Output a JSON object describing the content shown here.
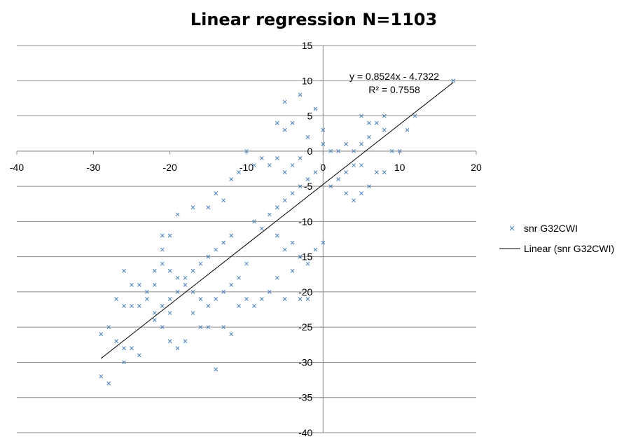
{
  "chart_data": {
    "type": "scatter",
    "title": "Linear regression N=1103",
    "xlabel": "",
    "ylabel": "",
    "xlim": [
      -40,
      20
    ],
    "ylim": [
      -40,
      15
    ],
    "x_ticks": [
      -40,
      -30,
      -20,
      -10,
      0,
      10,
      20
    ],
    "y_ticks": [
      15,
      10,
      5,
      0,
      -5,
      -10,
      -15,
      -20,
      -25,
      -30,
      -35,
      -40
    ],
    "grid": "horizontal",
    "legend_position": "right",
    "series": [
      {
        "name": "snr G32CWI",
        "marker": "x",
        "color": "#4a7ebb",
        "points": [
          [
            -29,
            -32
          ],
          [
            -28,
            -33
          ],
          [
            -26,
            -30
          ],
          [
            -14,
            -31
          ],
          [
            -12,
            -26
          ],
          [
            -28,
            -25
          ],
          [
            -29,
            -26
          ],
          [
            -27,
            -27
          ],
          [
            -26,
            -28
          ],
          [
            -25,
            -28
          ],
          [
            -24,
            -29
          ],
          [
            -27,
            -21
          ],
          [
            -26,
            -17
          ],
          [
            -25,
            -19
          ],
          [
            -24,
            -19
          ],
          [
            -26,
            -22
          ],
          [
            -25,
            -22
          ],
          [
            -23,
            -20
          ],
          [
            -22,
            -17
          ],
          [
            -21,
            -12
          ],
          [
            -21,
            -14
          ],
          [
            -20,
            -12
          ],
          [
            -19,
            -9
          ],
          [
            -20,
            -27
          ],
          [
            -19,
            -28
          ],
          [
            -18,
            -27
          ],
          [
            -17,
            -23
          ],
          [
            -16,
            -25
          ],
          [
            -15,
            -25
          ],
          [
            -17,
            -8
          ],
          [
            -15,
            -8
          ],
          [
            -14,
            -6
          ],
          [
            -13,
            -7
          ],
          [
            -12,
            -4
          ],
          [
            -11,
            -3
          ],
          [
            -10,
            0
          ],
          [
            -9,
            -2
          ],
          [
            -8,
            -1
          ],
          [
            -7,
            -2
          ],
          [
            -6,
            -1
          ],
          [
            -5,
            -3
          ],
          [
            -4,
            -2
          ],
          [
            -3,
            -1
          ],
          [
            -8,
            -21
          ],
          [
            -7,
            -20
          ],
          [
            -6,
            -18
          ],
          [
            -5,
            -21
          ],
          [
            -4,
            -17
          ],
          [
            -3,
            -21
          ],
          [
            -5,
            7
          ],
          [
            -3,
            8
          ],
          [
            -5,
            3
          ],
          [
            -4,
            4
          ],
          [
            -6,
            4
          ],
          [
            -1,
            6
          ],
          [
            -2,
            2
          ],
          [
            -13,
            -25
          ],
          [
            -11,
            -22
          ],
          [
            -10,
            -21
          ],
          [
            -9,
            -22
          ],
          [
            -2,
            -21
          ],
          [
            0,
            3
          ],
          [
            0,
            1
          ],
          [
            1,
            0
          ],
          [
            2,
            0
          ],
          [
            3,
            1
          ],
          [
            4,
            0
          ],
          [
            5,
            1
          ],
          [
            6,
            2
          ],
          [
            5,
            5
          ],
          [
            6,
            4
          ],
          [
            7,
            4
          ],
          [
            8,
            5
          ],
          [
            8,
            3
          ],
          [
            9,
            0
          ],
          [
            10,
            0
          ],
          [
            11,
            3
          ],
          [
            12,
            5
          ],
          [
            17,
            10
          ],
          [
            3,
            -6
          ],
          [
            4,
            -7
          ],
          [
            5,
            -6
          ],
          [
            6,
            -5
          ],
          [
            7,
            -3
          ],
          [
            8,
            -3
          ],
          [
            -6,
            -12
          ],
          [
            -5,
            -14
          ],
          [
            -4,
            -13
          ],
          [
            -3,
            -15
          ],
          [
            -2,
            -16
          ],
          [
            -1,
            -14
          ],
          [
            0,
            -13
          ],
          [
            -10,
            -16
          ],
          [
            -11,
            -18
          ],
          [
            -12,
            -19
          ],
          [
            -13,
            -20
          ],
          [
            -14,
            -21
          ],
          [
            -15,
            -22
          ],
          [
            -16,
            -21
          ],
          [
            -17,
            -20
          ],
          [
            -18,
            -19
          ],
          [
            -19,
            -18
          ],
          [
            -20,
            -17
          ],
          [
            -21,
            -16
          ],
          [
            -22,
            -19
          ],
          [
            -23,
            -21
          ],
          [
            -24,
            -22
          ],
          [
            -22,
            -24
          ],
          [
            -21,
            -25
          ],
          [
            -20,
            -23
          ],
          [
            -9,
            -10
          ],
          [
            -8,
            -11
          ],
          [
            -7,
            -9
          ],
          [
            -6,
            -8
          ],
          [
            -5,
            -7
          ],
          [
            -4,
            -6
          ],
          [
            -3,
            -5
          ],
          [
            -2,
            -4
          ],
          [
            -1,
            -3
          ],
          [
            1,
            -5
          ],
          [
            2,
            -4
          ],
          [
            3,
            -3
          ],
          [
            4,
            -2
          ],
          [
            5,
            -2
          ],
          [
            -12,
            -12
          ],
          [
            -13,
            -13
          ],
          [
            -14,
            -14
          ],
          [
            -15,
            -15
          ],
          [
            -16,
            -16
          ],
          [
            -17,
            -17
          ],
          [
            -18,
            -18
          ],
          [
            -19,
            -20
          ],
          [
            -20,
            -21
          ],
          [
            -21,
            -22
          ],
          [
            -22,
            -23
          ]
        ]
      },
      {
        "name": "Linear (snr G32CWI)",
        "type": "line",
        "color": "#000000",
        "x": [
          -29,
          17
        ],
        "y": [
          -29.45,
          9.76
        ]
      }
    ],
    "trendline": {
      "slope": 0.8524,
      "intercept": -4.7322,
      "equation_label": "y = 0.8524x - 4.7322",
      "r2_label": "R² = 0.7558"
    }
  },
  "legend": {
    "scatter_label": "snr G32CWI",
    "line_label": "Linear (snr G32CWI)"
  }
}
